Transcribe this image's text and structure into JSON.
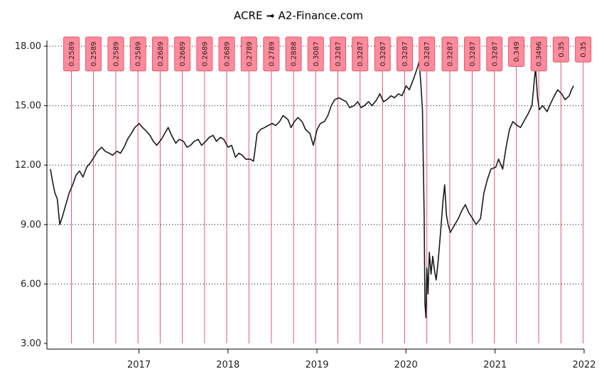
{
  "chart_data": {
    "type": "line",
    "title": "ACRE ➟ A2-Finance.com",
    "xlabel": "",
    "ylabel": "",
    "ylim": [
      3.0,
      18.0
    ],
    "xlim": [
      "2016-01-01",
      "2022-01-01"
    ],
    "y_ticks": [
      "3.00",
      "6.00",
      "9.00",
      "12.00",
      "15.00",
      "18.00"
    ],
    "x_ticks": [
      {
        "date": "2017-01-01",
        "label": "2017"
      },
      {
        "date": "2018-01-01",
        "label": "2018"
      },
      {
        "date": "2019-01-01",
        "label": "2019"
      },
      {
        "date": "2020-01-01",
        "label": "2020"
      },
      {
        "date": "2021-01-01",
        "label": "2021"
      },
      {
        "date": "2022-01-01",
        "label": "2022"
      }
    ],
    "grid": "horizontal dotted",
    "line_color": "#1a1a1a",
    "dividend_color": "#e05a6d",
    "dividend_box_color": "#ff8b9c",
    "series": [
      {
        "points": [
          [
            "2016-01-04",
            11.8
          ],
          [
            "2016-01-12",
            11.2
          ],
          [
            "2016-01-22",
            10.6
          ],
          [
            "2016-02-01",
            10.3
          ],
          [
            "2016-02-11",
            9.0
          ],
          [
            "2016-02-22",
            9.4
          ],
          [
            "2016-03-07",
            10.0
          ],
          [
            "2016-03-21",
            10.6
          ],
          [
            "2016-04-04",
            11.0
          ],
          [
            "2016-04-18",
            11.5
          ],
          [
            "2016-05-02",
            11.7
          ],
          [
            "2016-05-16",
            11.4
          ],
          [
            "2016-06-01",
            11.9
          ],
          [
            "2016-06-15",
            12.1
          ],
          [
            "2016-07-01",
            12.4
          ],
          [
            "2016-07-15",
            12.7
          ],
          [
            "2016-08-01",
            12.9
          ],
          [
            "2016-08-15",
            12.7
          ],
          [
            "2016-09-01",
            12.6
          ],
          [
            "2016-09-15",
            12.5
          ],
          [
            "2016-10-03",
            12.7
          ],
          [
            "2016-10-17",
            12.6
          ],
          [
            "2016-11-01",
            12.9
          ],
          [
            "2016-11-15",
            13.3
          ],
          [
            "2016-12-01",
            13.6
          ],
          [
            "2016-12-15",
            13.9
          ],
          [
            "2017-01-02",
            14.1
          ],
          [
            "2017-01-16",
            13.9
          ],
          [
            "2017-02-01",
            13.7
          ],
          [
            "2017-02-15",
            13.5
          ],
          [
            "2017-03-01",
            13.2
          ],
          [
            "2017-03-15",
            13.0
          ],
          [
            "2017-04-03",
            13.3
          ],
          [
            "2017-04-17",
            13.6
          ],
          [
            "2017-05-01",
            13.9
          ],
          [
            "2017-05-15",
            13.5
          ],
          [
            "2017-06-01",
            13.1
          ],
          [
            "2017-06-15",
            13.3
          ],
          [
            "2017-07-03",
            13.2
          ],
          [
            "2017-07-17",
            12.9
          ],
          [
            "2017-08-01",
            13.0
          ],
          [
            "2017-08-15",
            13.2
          ],
          [
            "2017-09-01",
            13.3
          ],
          [
            "2017-09-15",
            13.0
          ],
          [
            "2017-10-02",
            13.2
          ],
          [
            "2017-10-16",
            13.4
          ],
          [
            "2017-11-01",
            13.5
          ],
          [
            "2017-11-15",
            13.2
          ],
          [
            "2017-12-01",
            13.4
          ],
          [
            "2017-12-15",
            13.3
          ],
          [
            "2018-01-02",
            12.9
          ],
          [
            "2018-01-16",
            13.0
          ],
          [
            "2018-02-01",
            12.4
          ],
          [
            "2018-02-15",
            12.6
          ],
          [
            "2018-03-01",
            12.5
          ],
          [
            "2018-03-15",
            12.3
          ],
          [
            "2018-04-02",
            12.3
          ],
          [
            "2018-04-16",
            12.2
          ],
          [
            "2018-05-01",
            13.6
          ],
          [
            "2018-05-15",
            13.8
          ],
          [
            "2018-06-01",
            13.9
          ],
          [
            "2018-06-15",
            14.0
          ],
          [
            "2018-07-02",
            14.1
          ],
          [
            "2018-07-16",
            14.0
          ],
          [
            "2018-08-01",
            14.2
          ],
          [
            "2018-08-15",
            14.5
          ],
          [
            "2018-09-04",
            14.3
          ],
          [
            "2018-09-17",
            13.9
          ],
          [
            "2018-10-01",
            14.2
          ],
          [
            "2018-10-15",
            14.4
          ],
          [
            "2018-11-01",
            14.2
          ],
          [
            "2018-11-15",
            13.8
          ],
          [
            "2018-12-03",
            13.6
          ],
          [
            "2018-12-17",
            13.0
          ],
          [
            "2019-01-02",
            13.8
          ],
          [
            "2019-01-15",
            14.1
          ],
          [
            "2019-02-01",
            14.2
          ],
          [
            "2019-02-15",
            14.5
          ],
          [
            "2019-03-01",
            15.0
          ],
          [
            "2019-03-15",
            15.3
          ],
          [
            "2019-04-01",
            15.4
          ],
          [
            "2019-04-15",
            15.3
          ],
          [
            "2019-05-01",
            15.2
          ],
          [
            "2019-05-15",
            14.9
          ],
          [
            "2019-06-03",
            15.0
          ],
          [
            "2019-06-17",
            15.2
          ],
          [
            "2019-07-01",
            14.9
          ],
          [
            "2019-07-15",
            15.0
          ],
          [
            "2019-08-01",
            15.2
          ],
          [
            "2019-08-15",
            15.0
          ],
          [
            "2019-09-03",
            15.3
          ],
          [
            "2019-09-16",
            15.6
          ],
          [
            "2019-10-01",
            15.2
          ],
          [
            "2019-10-15",
            15.3
          ],
          [
            "2019-11-01",
            15.5
          ],
          [
            "2019-11-15",
            15.4
          ],
          [
            "2019-12-02",
            15.6
          ],
          [
            "2019-12-16",
            15.5
          ],
          [
            "2020-01-02",
            16.0
          ],
          [
            "2020-01-15",
            15.8
          ],
          [
            "2020-02-03",
            16.4
          ],
          [
            "2020-02-14",
            16.8
          ],
          [
            "2020-02-24",
            17.2
          ],
          [
            "2020-03-02",
            16.2
          ],
          [
            "2020-03-09",
            14.8
          ],
          [
            "2020-03-16",
            9.5
          ],
          [
            "2020-03-19",
            5.0
          ],
          [
            "2020-03-23",
            4.3
          ],
          [
            "2020-03-27",
            6.8
          ],
          [
            "2020-04-01",
            5.5
          ],
          [
            "2020-04-06",
            7.6
          ],
          [
            "2020-04-13",
            6.5
          ],
          [
            "2020-04-20",
            7.4
          ],
          [
            "2020-04-27",
            6.7
          ],
          [
            "2020-05-04",
            6.2
          ],
          [
            "2020-05-11",
            7.0
          ],
          [
            "2020-05-18",
            8.0
          ],
          [
            "2020-05-26",
            9.2
          ],
          [
            "2020-06-01",
            10.2
          ],
          [
            "2020-06-08",
            11.0
          ],
          [
            "2020-06-15",
            9.5
          ],
          [
            "2020-06-22",
            9.0
          ],
          [
            "2020-07-01",
            8.6
          ],
          [
            "2020-07-15",
            8.9
          ],
          [
            "2020-08-03",
            9.3
          ],
          [
            "2020-08-17",
            9.7
          ],
          [
            "2020-09-01",
            10.0
          ],
          [
            "2020-09-15",
            9.6
          ],
          [
            "2020-10-01",
            9.3
          ],
          [
            "2020-10-15",
            9.0
          ],
          [
            "2020-11-02",
            9.3
          ],
          [
            "2020-11-16",
            10.6
          ],
          [
            "2020-12-01",
            11.3
          ],
          [
            "2020-12-15",
            11.8
          ],
          [
            "2021-01-04",
            11.9
          ],
          [
            "2021-01-15",
            12.3
          ],
          [
            "2021-02-01",
            11.8
          ],
          [
            "2021-02-15",
            12.9
          ],
          [
            "2021-03-01",
            13.8
          ],
          [
            "2021-03-15",
            14.2
          ],
          [
            "2021-04-01",
            14.0
          ],
          [
            "2021-04-15",
            13.9
          ],
          [
            "2021-05-03",
            14.3
          ],
          [
            "2021-05-17",
            14.6
          ],
          [
            "2021-06-01",
            15.0
          ],
          [
            "2021-06-10",
            16.2
          ],
          [
            "2021-06-16",
            16.9
          ],
          [
            "2021-06-24",
            15.4
          ],
          [
            "2021-07-01",
            14.8
          ],
          [
            "2021-07-15",
            15.0
          ],
          [
            "2021-08-02",
            14.7
          ],
          [
            "2021-08-16",
            15.1
          ],
          [
            "2021-09-01",
            15.5
          ],
          [
            "2021-09-15",
            15.8
          ],
          [
            "2021-10-01",
            15.6
          ],
          [
            "2021-10-15",
            15.3
          ],
          [
            "2021-11-01",
            15.5
          ],
          [
            "2021-11-10",
            15.8
          ],
          [
            "2021-11-19",
            16.0
          ]
        ]
      }
    ],
    "dividends": [
      {
        "date": "2016-03-30",
        "value": "0.2589"
      },
      {
        "date": "2016-06-28",
        "value": "0.2589"
      },
      {
        "date": "2016-09-28",
        "value": "0.2589"
      },
      {
        "date": "2016-12-28",
        "value": "0.2589"
      },
      {
        "date": "2017-03-29",
        "value": "0.2689"
      },
      {
        "date": "2017-06-28",
        "value": "0.2689"
      },
      {
        "date": "2017-09-27",
        "value": "0.2689"
      },
      {
        "date": "2017-12-27",
        "value": "0.2689"
      },
      {
        "date": "2018-03-28",
        "value": "0.2789"
      },
      {
        "date": "2018-06-28",
        "value": "0.2789"
      },
      {
        "date": "2018-09-27",
        "value": "0.2888"
      },
      {
        "date": "2018-12-27",
        "value": "0.3087"
      },
      {
        "date": "2019-03-28",
        "value": "0.3287"
      },
      {
        "date": "2019-06-27",
        "value": "0.3287"
      },
      {
        "date": "2019-09-27",
        "value": "0.3287"
      },
      {
        "date": "2019-12-27",
        "value": "0.3287"
      },
      {
        "date": "2020-03-27",
        "value": "0.3287"
      },
      {
        "date": "2020-06-29",
        "value": "0.3287"
      },
      {
        "date": "2020-09-29",
        "value": "0.3287"
      },
      {
        "date": "2020-12-29",
        "value": "0.3287"
      },
      {
        "date": "2021-03-29",
        "value": "0.349"
      },
      {
        "date": "2021-06-29",
        "value": "0.3496"
      },
      {
        "date": "2021-09-28",
        "value": "0.35"
      },
      {
        "date": "2021-12-28",
        "value": "0.35"
      }
    ]
  }
}
